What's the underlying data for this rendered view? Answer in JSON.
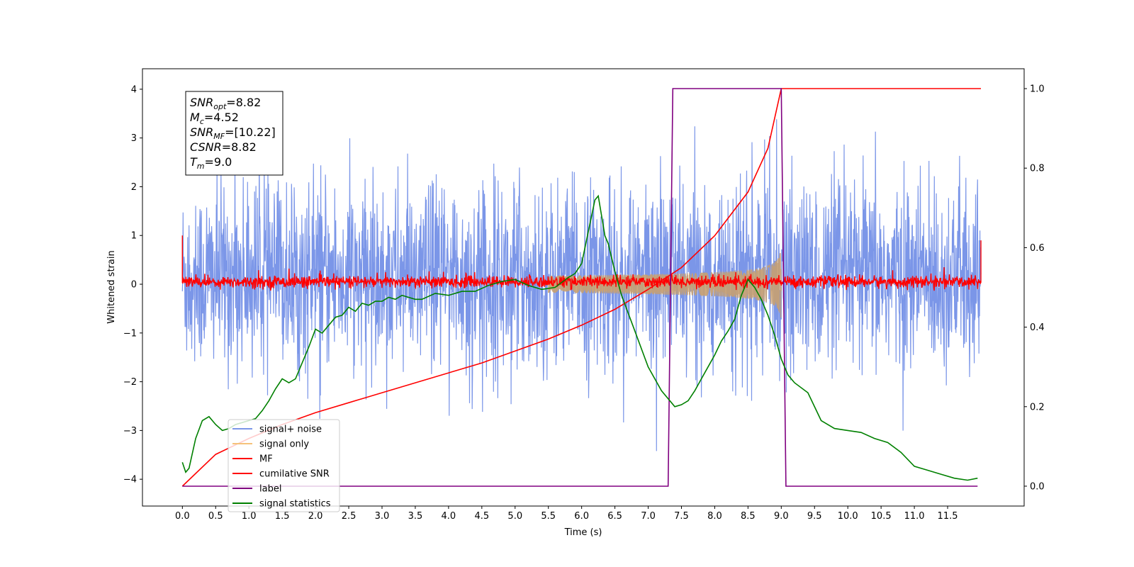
{
  "chart_data": {
    "type": "line",
    "xlabel": "Time (s)",
    "ylabel": "Whitened strain",
    "xlim": [
      -0.6,
      12.65
    ],
    "ylim_left": [
      -4.55,
      4.42
    ],
    "ylim_right": [
      -0.05,
      1.05
    ],
    "x_ticks": [
      "0.0",
      "0.5",
      "1.0",
      "1.5",
      "2.0",
      "2.5",
      "3.0",
      "3.5",
      "4.0",
      "4.5",
      "5.0",
      "5.5",
      "6.0",
      "6.5",
      "7.0",
      "7.5",
      "8.0",
      "8.5",
      "9.0",
      "9.5",
      "10.0",
      "10.5",
      "11.0",
      "11.5"
    ],
    "y_ticks_left": [
      "−4",
      "−3",
      "−2",
      "−1",
      "0",
      "1",
      "2",
      "3",
      "4"
    ],
    "y_ticks_right": [
      "0.0",
      "0.2",
      "0.4",
      "0.6",
      "0.8",
      "1.0"
    ],
    "legend_position": "lower-left",
    "info_box": [
      {
        "base": "SNR",
        "sub": "opt",
        "value": "=8.82"
      },
      {
        "base": "M",
        "sub": "c",
        "value": "=4.52"
      },
      {
        "base": "SNR",
        "sub": "MF",
        "value": "=[10.22]"
      },
      {
        "base": "CSNR",
        "sub": "",
        "value": "=8.82"
      },
      {
        "base": "T",
        "sub": "m",
        "value": "=9.0"
      }
    ],
    "series": [
      {
        "name": "signal+ noise",
        "color": "#7b96e8",
        "axis": "left",
        "kind": "noise",
        "x_range": [
          0.0,
          12.0
        ],
        "band": [
          -2.0,
          2.3
        ],
        "peaks_max": 4.0,
        "peaks_min": -4.15
      },
      {
        "name": "signal only",
        "color": "#f5c27a",
        "axis": "left",
        "kind": "chirp",
        "x_range": [
          0.0,
          9.0
        ],
        "amplitude_at_merger": 0.75
      },
      {
        "name": "MF",
        "color": "#ff0000",
        "axis": "left",
        "kind": "mf",
        "x_range": [
          0.0,
          12.0
        ],
        "band": [
          -0.12,
          0.25
        ]
      },
      {
        "name": "cumilative SNR",
        "color": "#ff0000",
        "axis": "right",
        "kind": "line",
        "x": [
          0.0,
          0.5,
          1.0,
          1.5,
          2.0,
          2.5,
          3.0,
          3.5,
          4.0,
          4.5,
          5.0,
          5.5,
          6.0,
          6.5,
          7.0,
          7.5,
          8.0,
          8.5,
          8.8,
          9.0,
          9.01,
          12.0
        ],
        "y": [
          0.0,
          0.08,
          0.12,
          0.155,
          0.185,
          0.21,
          0.235,
          0.26,
          0.285,
          0.31,
          0.34,
          0.37,
          0.405,
          0.445,
          0.495,
          0.55,
          0.63,
          0.74,
          0.85,
          1.0,
          1.0,
          1.0
        ]
      },
      {
        "name": "label",
        "color": "#800080",
        "axis": "right",
        "kind": "line",
        "x": [
          0.0,
          7.3,
          7.37,
          9.0,
          9.07,
          11.95
        ],
        "y": [
          0.0,
          0.0,
          1.0,
          1.0,
          0.0,
          0.0
        ]
      },
      {
        "name": "signal statistics",
        "color": "#008000",
        "axis": "right",
        "kind": "line",
        "x": [
          0.0,
          0.05,
          0.1,
          0.2,
          0.3,
          0.4,
          0.5,
          0.6,
          0.7,
          0.8,
          0.9,
          1.0,
          1.1,
          1.2,
          1.3,
          1.4,
          1.5,
          1.6,
          1.7,
          1.8,
          1.9,
          2.0,
          2.1,
          2.2,
          2.3,
          2.4,
          2.5,
          2.6,
          2.7,
          2.8,
          2.9,
          3.0,
          3.1,
          3.2,
          3.3,
          3.4,
          3.5,
          3.6,
          3.8,
          4.0,
          4.2,
          4.4,
          4.6,
          4.8,
          5.0,
          5.2,
          5.4,
          5.6,
          5.8,
          5.9,
          6.0,
          6.1,
          6.2,
          6.25,
          6.3,
          6.35,
          6.4,
          6.5,
          6.6,
          6.8,
          7.0,
          7.2,
          7.4,
          7.5,
          7.6,
          7.7,
          7.8,
          7.9,
          8.0,
          8.1,
          8.2,
          8.3,
          8.4,
          8.5,
          8.6,
          8.7,
          8.8,
          8.9,
          9.0,
          9.1,
          9.2,
          9.4,
          9.6,
          9.8,
          10.0,
          10.2,
          10.4,
          10.6,
          10.8,
          11.0,
          11.2,
          11.4,
          11.6,
          11.8,
          11.95
        ],
        "y": [
          0.06,
          0.035,
          0.045,
          0.12,
          0.165,
          0.175,
          0.155,
          0.14,
          0.145,
          0.155,
          0.16,
          0.165,
          0.17,
          0.19,
          0.215,
          0.245,
          0.27,
          0.26,
          0.27,
          0.31,
          0.35,
          0.395,
          0.385,
          0.405,
          0.425,
          0.43,
          0.45,
          0.44,
          0.46,
          0.455,
          0.465,
          0.465,
          0.475,
          0.47,
          0.48,
          0.475,
          0.47,
          0.47,
          0.485,
          0.48,
          0.49,
          0.49,
          0.505,
          0.515,
          0.52,
          0.505,
          0.495,
          0.5,
          0.525,
          0.535,
          0.56,
          0.64,
          0.72,
          0.73,
          0.68,
          0.63,
          0.61,
          0.54,
          0.48,
          0.39,
          0.3,
          0.24,
          0.2,
          0.205,
          0.215,
          0.24,
          0.27,
          0.3,
          0.33,
          0.365,
          0.39,
          0.42,
          0.48,
          0.52,
          0.5,
          0.47,
          0.43,
          0.38,
          0.32,
          0.28,
          0.26,
          0.235,
          0.165,
          0.145,
          0.14,
          0.135,
          0.12,
          0.11,
          0.085,
          0.05,
          0.04,
          0.03,
          0.02,
          0.015,
          0.02
        ]
      }
    ]
  }
}
